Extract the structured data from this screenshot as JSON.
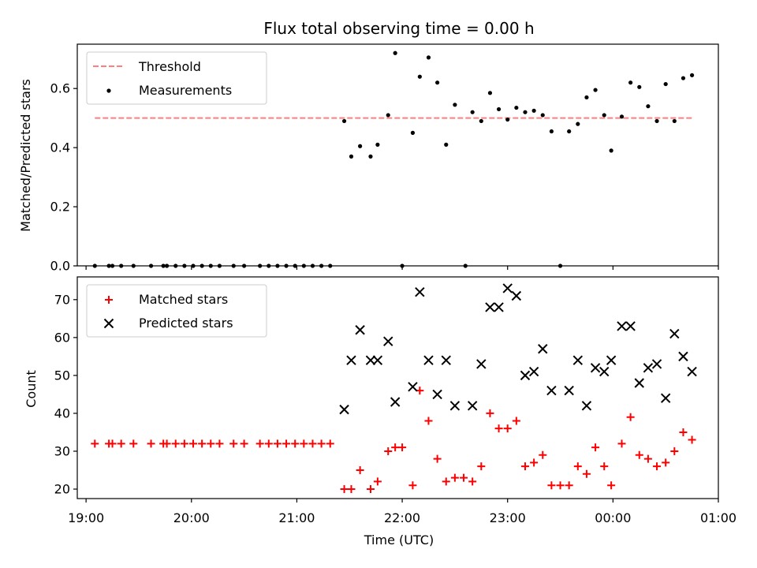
{
  "chart_data": [
    {
      "type": "scatter",
      "title": "Flux total observing time = 0.00 h",
      "ylabel": "Matched/Predicted stars",
      "xlabel": "",
      "xlim": [
        "18:55",
        "01:00"
      ],
      "ylim": [
        0,
        0.75
      ],
      "yticks": [
        "0.0",
        "0.2",
        "0.4",
        "0.6"
      ],
      "legend": {
        "position": "top-left",
        "entries": [
          "Threshold",
          "Measurements"
        ]
      },
      "threshold": {
        "name": "Threshold",
        "value": 0.5,
        "x_from": "19:05",
        "x_to": "00:45",
        "color": "#ff7f7f",
        "style": "dashed"
      },
      "series": [
        {
          "name": "Measurements",
          "color": "#000000",
          "marker": "dot",
          "points": [
            [
              "19:05",
              0.0
            ],
            [
              "19:13",
              0.0
            ],
            [
              "19:15",
              0.0
            ],
            [
              "19:20",
              0.0
            ],
            [
              "19:27",
              0.0
            ],
            [
              "19:37",
              0.0
            ],
            [
              "19:44",
              0.0
            ],
            [
              "19:46",
              0.0
            ],
            [
              "19:51",
              0.0
            ],
            [
              "19:56",
              0.0
            ],
            [
              "20:01",
              0.0
            ],
            [
              "20:06",
              0.0
            ],
            [
              "20:11",
              0.0
            ],
            [
              "20:16",
              0.0
            ],
            [
              "20:24",
              0.0
            ],
            [
              "20:30",
              0.0
            ],
            [
              "20:39",
              0.0
            ],
            [
              "20:44",
              0.0
            ],
            [
              "20:49",
              0.0
            ],
            [
              "20:54",
              0.0
            ],
            [
              "20:59",
              0.0
            ],
            [
              "21:04",
              0.0
            ],
            [
              "21:09",
              0.0
            ],
            [
              "21:14",
              0.0
            ],
            [
              "21:19",
              0.0
            ],
            [
              "21:27",
              0.49
            ],
            [
              "21:31",
              0.37
            ],
            [
              "21:36",
              0.405
            ],
            [
              "21:42",
              0.37
            ],
            [
              "21:46",
              0.41
            ],
            [
              "21:52",
              0.51
            ],
            [
              "21:56",
              0.72
            ],
            [
              "22:00",
              0.0
            ],
            [
              "22:06",
              0.45
            ],
            [
              "22:10",
              0.64
            ],
            [
              "22:15",
              0.705
            ],
            [
              "22:20",
              0.62
            ],
            [
              "22:25",
              0.41
            ],
            [
              "22:30",
              0.545
            ],
            [
              "22:36",
              0.0
            ],
            [
              "22:40",
              0.52
            ],
            [
              "22:45",
              0.49
            ],
            [
              "22:50",
              0.585
            ],
            [
              "22:55",
              0.53
            ],
            [
              "23:00",
              0.495
            ],
            [
              "23:05",
              0.535
            ],
            [
              "23:10",
              0.52
            ],
            [
              "23:15",
              0.525
            ],
            [
              "23:20",
              0.51
            ],
            [
              "23:25",
              0.455
            ],
            [
              "23:30",
              0.0
            ],
            [
              "23:35",
              0.455
            ],
            [
              "23:40",
              0.48
            ],
            [
              "23:45",
              0.57
            ],
            [
              "23:50",
              0.595
            ],
            [
              "23:55",
              0.51
            ],
            [
              "23:59",
              0.39
            ],
            [
              "00:05",
              0.505
            ],
            [
              "00:10",
              0.62
            ],
            [
              "00:15",
              0.605
            ],
            [
              "00:20",
              0.54
            ],
            [
              "00:25",
              0.49
            ],
            [
              "00:30",
              0.615
            ],
            [
              "00:35",
              0.49
            ],
            [
              "00:40",
              0.635
            ],
            [
              "00:45",
              0.645
            ]
          ]
        }
      ]
    },
    {
      "type": "scatter",
      "title": "",
      "ylabel": "Count",
      "xlabel": "Time (UTC)",
      "xlim": [
        "18:55",
        "01:00"
      ],
      "ylim": [
        17.5,
        76
      ],
      "yticks": [
        "20",
        "30",
        "40",
        "50",
        "60",
        "70"
      ],
      "xticks": [
        "19:00",
        "20:00",
        "21:00",
        "22:00",
        "23:00",
        "00:00",
        "01:00"
      ],
      "legend": {
        "position": "top-left",
        "entries": [
          "Matched stars",
          "Predicted stars"
        ]
      },
      "series": [
        {
          "name": "Matched stars",
          "color": "#ff0000",
          "marker": "plus",
          "points": [
            [
              "19:05",
              32
            ],
            [
              "19:13",
              32
            ],
            [
              "19:15",
              32
            ],
            [
              "19:20",
              32
            ],
            [
              "19:27",
              32
            ],
            [
              "19:37",
              32
            ],
            [
              "19:44",
              32
            ],
            [
              "19:46",
              32
            ],
            [
              "19:51",
              32
            ],
            [
              "19:56",
              32
            ],
            [
              "20:01",
              32
            ],
            [
              "20:06",
              32
            ],
            [
              "20:11",
              32
            ],
            [
              "20:16",
              32
            ],
            [
              "20:24",
              32
            ],
            [
              "20:30",
              32
            ],
            [
              "20:39",
              32
            ],
            [
              "20:44",
              32
            ],
            [
              "20:49",
              32
            ],
            [
              "20:54",
              32
            ],
            [
              "20:59",
              32
            ],
            [
              "21:04",
              32
            ],
            [
              "21:09",
              32
            ],
            [
              "21:14",
              32
            ],
            [
              "21:19",
              32
            ],
            [
              "21:27",
              20
            ],
            [
              "21:31",
              20
            ],
            [
              "21:36",
              25
            ],
            [
              "21:42",
              20
            ],
            [
              "21:46",
              22
            ],
            [
              "21:52",
              30
            ],
            [
              "21:56",
              31
            ],
            [
              "22:00",
              31
            ],
            [
              "22:06",
              21
            ],
            [
              "22:10",
              46
            ],
            [
              "22:15",
              38
            ],
            [
              "22:20",
              28
            ],
            [
              "22:25",
              22
            ],
            [
              "22:30",
              23
            ],
            [
              "22:35",
              23
            ],
            [
              "22:40",
              22
            ],
            [
              "22:45",
              26
            ],
            [
              "22:50",
              40
            ],
            [
              "22:55",
              36
            ],
            [
              "23:00",
              36
            ],
            [
              "23:05",
              38
            ],
            [
              "23:10",
              26
            ],
            [
              "23:15",
              27
            ],
            [
              "23:20",
              29
            ],
            [
              "23:25",
              21
            ],
            [
              "23:30",
              21
            ],
            [
              "23:35",
              21
            ],
            [
              "23:40",
              26
            ],
            [
              "23:45",
              24
            ],
            [
              "23:50",
              31
            ],
            [
              "23:55",
              26
            ],
            [
              "23:59",
              21
            ],
            [
              "00:05",
              32
            ],
            [
              "00:10",
              39
            ],
            [
              "00:15",
              29
            ],
            [
              "00:20",
              28
            ],
            [
              "00:25",
              26
            ],
            [
              "00:30",
              27
            ],
            [
              "00:35",
              30
            ],
            [
              "00:40",
              35
            ],
            [
              "00:45",
              33
            ]
          ]
        },
        {
          "name": "Predicted stars",
          "color": "#000000",
          "marker": "cross",
          "points": [
            [
              "21:27",
              41
            ],
            [
              "21:31",
              54
            ],
            [
              "21:36",
              62
            ],
            [
              "21:42",
              54
            ],
            [
              "21:46",
              54
            ],
            [
              "21:52",
              59
            ],
            [
              "21:56",
              43
            ],
            [
              "22:06",
              47
            ],
            [
              "22:10",
              72
            ],
            [
              "22:15",
              54
            ],
            [
              "22:20",
              45
            ],
            [
              "22:25",
              54
            ],
            [
              "22:30",
              42
            ],
            [
              "22:40",
              42
            ],
            [
              "22:45",
              53
            ],
            [
              "22:50",
              68
            ],
            [
              "22:55",
              68
            ],
            [
              "23:00",
              73
            ],
            [
              "23:05",
              71
            ],
            [
              "23:10",
              50
            ],
            [
              "23:15",
              51
            ],
            [
              "23:20",
              57
            ],
            [
              "23:25",
              46
            ],
            [
              "23:35",
              46
            ],
            [
              "23:40",
              54
            ],
            [
              "23:45",
              42
            ],
            [
              "23:50",
              52
            ],
            [
              "23:55",
              51
            ],
            [
              "23:59",
              54
            ],
            [
              "00:05",
              63
            ],
            [
              "00:10",
              63
            ],
            [
              "00:15",
              48
            ],
            [
              "00:20",
              52
            ],
            [
              "00:25",
              53
            ],
            [
              "00:30",
              44
            ],
            [
              "00:35",
              61
            ],
            [
              "00:40",
              55
            ],
            [
              "00:45",
              51
            ]
          ]
        }
      ]
    }
  ]
}
